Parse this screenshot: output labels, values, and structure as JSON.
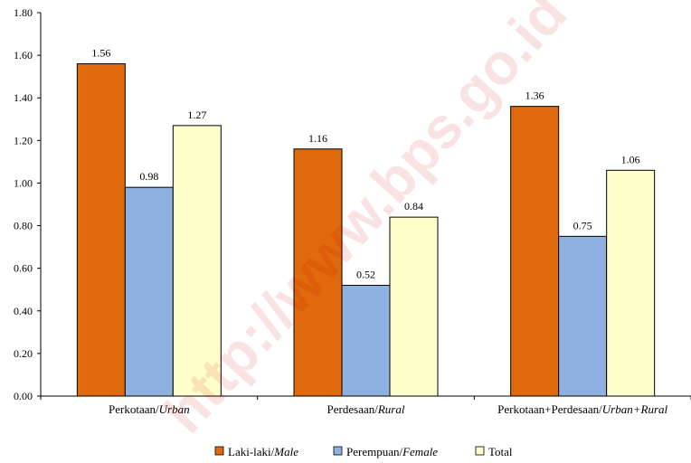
{
  "chart_data": {
    "type": "bar",
    "categories": [
      [
        "Perkotaan/",
        "Urban"
      ],
      [
        "Perdesaan/",
        "Rural"
      ],
      [
        "Perkotaan+Perdesaan/",
        "Urban+Rural"
      ]
    ],
    "series": [
      {
        "name": [
          "Laki-laki/",
          "Male"
        ],
        "color": "#e06a0c",
        "values": [
          1.56,
          1.16,
          1.36
        ],
        "labels": [
          "1.56",
          "1.16",
          "1.36"
        ]
      },
      {
        "name": [
          "Perempuan/",
          "Female"
        ],
        "color": "#8eb1e0",
        "values": [
          0.98,
          0.52,
          0.75
        ],
        "labels": [
          "0.98",
          "0.52",
          "0.75"
        ]
      },
      {
        "name": [
          "Total",
          ""
        ],
        "color": "#ffffcc",
        "values": [
          1.27,
          0.84,
          1.06
        ],
        "labels": [
          "1.27",
          "0.84",
          "1.06"
        ]
      }
    ],
    "y_ticks": [
      "0.00",
      "0.20",
      "0.40",
      "0.60",
      "0.80",
      "1.00",
      "1.20",
      "1.40",
      "1.60",
      "1.80"
    ],
    "ylim": [
      0,
      1.8
    ],
    "grid": false,
    "legend_position": "bottom",
    "title": "",
    "xlabel": "",
    "ylabel": ""
  },
  "watermark": "http://www.bps.go.id"
}
